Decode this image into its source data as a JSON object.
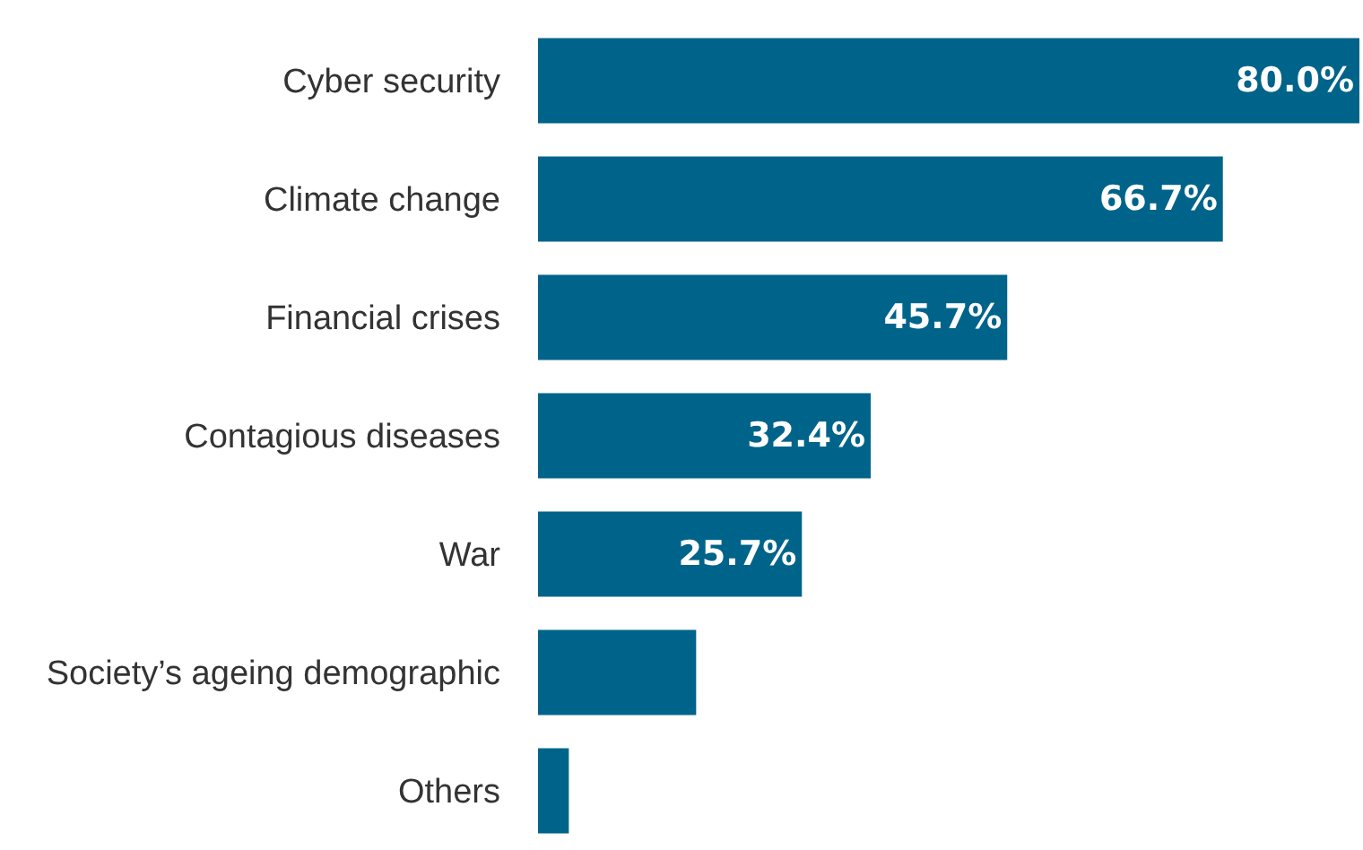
{
  "chart_data": {
    "type": "bar",
    "orientation": "horizontal",
    "categories": [
      "Cyber security",
      "Climate change",
      "Financial crises",
      "Contagious diseases",
      "War",
      "Society’s ageing demographic",
      "Others"
    ],
    "values": [
      80.0,
      66.7,
      45.7,
      32.4,
      25.7,
      15.4,
      3.0
    ],
    "value_labels": [
      "80.0%",
      "66.7%",
      "45.7%",
      "32.4%",
      "25.7%",
      null,
      null
    ],
    "color": "#00648a",
    "xlim": [
      0,
      80
    ],
    "tick_labels": "y",
    "grid": false,
    "legend": false
  }
}
